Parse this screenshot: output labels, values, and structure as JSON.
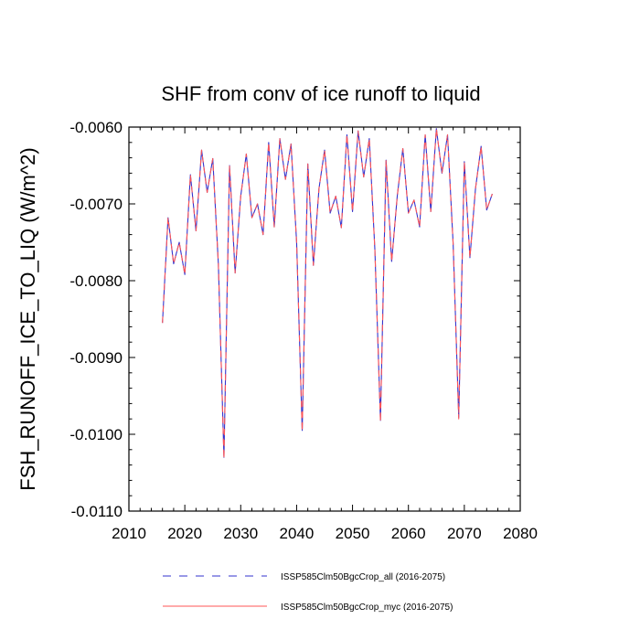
{
  "chart_data": {
    "type": "line",
    "title": "SHF from conv of ice runoff to liquid",
    "xlabel": "",
    "ylabel": "FSH_RUNOFF_ICE_TO_LIQ  (W/m^2)",
    "xlim": [
      2010,
      2080
    ],
    "ylim": [
      -0.011,
      -0.006
    ],
    "x_ticks": [
      2010,
      2020,
      2030,
      2040,
      2050,
      2060,
      2070,
      2080
    ],
    "x_tick_labels": [
      "2010",
      "2020",
      "2030",
      "2040",
      "2050",
      "2060",
      "2070",
      "2080"
    ],
    "y_ticks": [
      -0.006,
      -0.007,
      -0.008,
      -0.009,
      -0.01,
      -0.011
    ],
    "y_tick_labels": [
      "-0.0060",
      "-0.0070",
      "-0.0080",
      "-0.0090",
      "-0.0100",
      "-0.0110"
    ],
    "grid": false,
    "legend_position": "bottom",
    "x": [
      2016,
      2017,
      2018,
      2019,
      2020,
      2021,
      2022,
      2023,
      2024,
      2025,
      2026,
      2027,
      2028,
      2029,
      2030,
      2031,
      2032,
      2033,
      2034,
      2035,
      2036,
      2037,
      2038,
      2039,
      2040,
      2041,
      2042,
      2043,
      2044,
      2045,
      2046,
      2047,
      2048,
      2049,
      2050,
      2051,
      2052,
      2053,
      2054,
      2055,
      2056,
      2057,
      2058,
      2059,
      2060,
      2061,
      2062,
      2063,
      2064,
      2065,
      2066,
      2067,
      2068,
      2069,
      2070,
      2071,
      2072,
      2073,
      2074,
      2075
    ],
    "series": [
      {
        "name": "ISSP585Clm50BgcCrop_all (2016-2075)",
        "color": "#3333cc",
        "style": "dashed",
        "values": [
          -0.00855,
          -0.00718,
          -0.00778,
          -0.0075,
          -0.00792,
          -0.00662,
          -0.00735,
          -0.0063,
          -0.00685,
          -0.00641,
          -0.00778,
          -0.0103,
          -0.0065,
          -0.0079,
          -0.0069,
          -0.00635,
          -0.00718,
          -0.007,
          -0.0074,
          -0.0062,
          -0.0073,
          -0.00615,
          -0.00668,
          -0.00622,
          -0.0075,
          -0.00995,
          -0.00648,
          -0.0078,
          -0.0068,
          -0.0063,
          -0.00712,
          -0.0069,
          -0.00731,
          -0.0061,
          -0.0071,
          -0.00605,
          -0.00665,
          -0.00615,
          -0.0076,
          -0.00982,
          -0.00643,
          -0.00775,
          -0.0069,
          -0.00628,
          -0.00712,
          -0.00695,
          -0.0073,
          -0.0061,
          -0.0071,
          -0.00602,
          -0.0066,
          -0.0061,
          -0.00752,
          -0.00978,
          -0.00645,
          -0.0077,
          -0.0068,
          -0.00625,
          -0.00708,
          -0.00687
        ]
      },
      {
        "name": "ISSP585Clm50BgcCrop_myc (2016-2075)",
        "color": "#ff5555",
        "style": "solid",
        "values": [
          -0.00855,
          -0.00718,
          -0.00778,
          -0.0075,
          -0.00792,
          -0.00662,
          -0.00735,
          -0.0063,
          -0.00685,
          -0.00641,
          -0.00778,
          -0.01032,
          -0.0065,
          -0.0079,
          -0.0069,
          -0.00635,
          -0.00718,
          -0.007,
          -0.0074,
          -0.0062,
          -0.0073,
          -0.00615,
          -0.00668,
          -0.00622,
          -0.0075,
          -0.00996,
          -0.00648,
          -0.0078,
          -0.0068,
          -0.0063,
          -0.00712,
          -0.0069,
          -0.00731,
          -0.0061,
          -0.0071,
          -0.00605,
          -0.00665,
          -0.00615,
          -0.0076,
          -0.00984,
          -0.00643,
          -0.00775,
          -0.0069,
          -0.00628,
          -0.00712,
          -0.00695,
          -0.0073,
          -0.0061,
          -0.0071,
          -0.00602,
          -0.0066,
          -0.0061,
          -0.00752,
          -0.0098,
          -0.00645,
          -0.0077,
          -0.0068,
          -0.00625,
          -0.00708,
          -0.00687
        ]
      }
    ]
  }
}
